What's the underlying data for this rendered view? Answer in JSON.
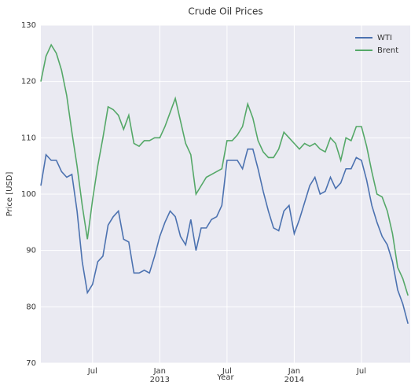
{
  "chart_data": {
    "type": "line",
    "title": "Crude Oil Prices",
    "xlabel": "Year",
    "ylabel": "Price [USD]",
    "categories": [
      null,
      null,
      null,
      null,
      null,
      null,
      null,
      null,
      null,
      null,
      "Jul",
      null,
      null,
      null,
      null,
      null,
      null,
      null,
      null,
      null,
      null,
      null,
      null,
      "Jan\n2013",
      null,
      null,
      null,
      null,
      null,
      null,
      null,
      null,
      null,
      null,
      null,
      null,
      "Jul",
      null,
      null,
      null,
      null,
      null,
      null,
      null,
      null,
      null,
      null,
      null,
      null,
      "Jan\n2014",
      null,
      null,
      null,
      null,
      null,
      null,
      null,
      null,
      null,
      null,
      null,
      null,
      "Jul",
      null,
      null,
      null,
      null,
      null,
      null,
      null,
      null,
      null
    ],
    "series": [
      {
        "name": "WTI",
        "color": "#4c72b0",
        "values": [
          101.5,
          107,
          106,
          106,
          104,
          103,
          103.5,
          97,
          88,
          82.5,
          84,
          88,
          89,
          94.5,
          96,
          97,
          92,
          91.5,
          86,
          86,
          86.5,
          86,
          89,
          92.5,
          95,
          97,
          96,
          92.5,
          91,
          95.5,
          90,
          94,
          94,
          95.5,
          96,
          98,
          106,
          106,
          106,
          104.5,
          108,
          108,
          104.5,
          100.5,
          97,
          94,
          93.5,
          97,
          98,
          93,
          95.5,
          98.5,
          101.5,
          103,
          100,
          100.5,
          103,
          101,
          102,
          104.5,
          104.5,
          106.5,
          106,
          102.5,
          98,
          95,
          92.5,
          91,
          88,
          83,
          80.5,
          77
        ]
      },
      {
        "name": "Brent",
        "color": "#55a868",
        "values": [
          120,
          124.5,
          126.5,
          125,
          122,
          117.5,
          111,
          105,
          98,
          92,
          99,
          105,
          110,
          115.5,
          115,
          114,
          111.5,
          114,
          109,
          108.5,
          109.5,
          109.5,
          110,
          110,
          112,
          114.5,
          117,
          113,
          109,
          107,
          100,
          101.5,
          103,
          103.5,
          104,
          104.5,
          109.5,
          109.5,
          110.5,
          112,
          116,
          113.5,
          109.5,
          107.5,
          106.5,
          106.5,
          108,
          111,
          110,
          109,
          108,
          109,
          108.5,
          109,
          108,
          107.5,
          110,
          109,
          106,
          110,
          109.5,
          112,
          112,
          108.5,
          104,
          100,
          99.5,
          97,
          93,
          87,
          85,
          82
        ]
      }
    ],
    "ylim": [
      70,
      130
    ],
    "yticks": [
      70,
      80,
      90,
      100,
      110,
      120,
      130
    ],
    "grid": true,
    "legend": "upper right"
  }
}
